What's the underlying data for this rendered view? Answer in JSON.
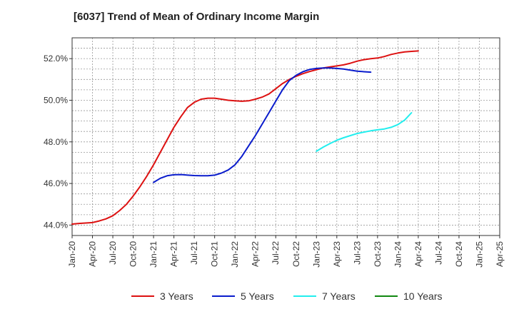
{
  "chart_data": {
    "type": "line",
    "title": "[6037]  Trend of Mean of Ordinary Income Margin",
    "xlabel": "",
    "ylabel": "",
    "ylim": [
      43.5,
      53.0
    ],
    "yticks": [
      44.0,
      46.0,
      48.0,
      50.0,
      52.0
    ],
    "ytick_labels": [
      "44.0%",
      "46.0%",
      "48.0%",
      "50.0%",
      "52.0%"
    ],
    "xticks": [
      "Jan-20",
      "Apr-20",
      "Jul-20",
      "Oct-20",
      "Jan-21",
      "Apr-21",
      "Jul-21",
      "Oct-21",
      "Jan-22",
      "Apr-22",
      "Jul-22",
      "Oct-22",
      "Jan-23",
      "Apr-23",
      "Jul-23",
      "Oct-23",
      "Jan-24",
      "Apr-24",
      "Jul-24",
      "Oct-24",
      "Jan-25",
      "Apr-25"
    ],
    "grid": true,
    "legend_position": "bottom",
    "series": [
      {
        "name": "3 Years",
        "color": "#dd1111",
        "points": [
          [
            "Jan-20",
            44.05
          ],
          [
            "Feb-20",
            44.08
          ],
          [
            "Mar-20",
            44.1
          ],
          [
            "Apr-20",
            44.12
          ],
          [
            "May-20",
            44.2
          ],
          [
            "Jun-20",
            44.3
          ],
          [
            "Jul-20",
            44.45
          ],
          [
            "Aug-20",
            44.7
          ],
          [
            "Sep-20",
            45.0
          ],
          [
            "Oct-20",
            45.4
          ],
          [
            "Nov-20",
            45.85
          ],
          [
            "Dec-20",
            46.35
          ],
          [
            "Jan-21",
            46.9
          ],
          [
            "Feb-21",
            47.5
          ],
          [
            "Mar-21",
            48.1
          ],
          [
            "Apr-21",
            48.7
          ],
          [
            "May-21",
            49.2
          ],
          [
            "Jun-21",
            49.65
          ],
          [
            "Jul-21",
            49.9
          ],
          [
            "Aug-21",
            50.05
          ],
          [
            "Sep-21",
            50.1
          ],
          [
            "Oct-21",
            50.1
          ],
          [
            "Nov-21",
            50.05
          ],
          [
            "Dec-21",
            50.0
          ],
          [
            "Jan-22",
            49.97
          ],
          [
            "Feb-22",
            49.95
          ],
          [
            "Mar-22",
            49.97
          ],
          [
            "Apr-22",
            50.05
          ],
          [
            "May-22",
            50.15
          ],
          [
            "Jun-22",
            50.3
          ],
          [
            "Jul-22",
            50.55
          ],
          [
            "Aug-22",
            50.8
          ],
          [
            "Sep-22",
            51.0
          ],
          [
            "Oct-22",
            51.15
          ],
          [
            "Nov-22",
            51.28
          ],
          [
            "Dec-22",
            51.38
          ],
          [
            "Jan-23",
            51.47
          ],
          [
            "Feb-23",
            51.55
          ],
          [
            "Mar-23",
            51.6
          ],
          [
            "Apr-23",
            51.65
          ],
          [
            "May-23",
            51.7
          ],
          [
            "Jun-23",
            51.78
          ],
          [
            "Jul-23",
            51.88
          ],
          [
            "Aug-23",
            51.95
          ],
          [
            "Sep-23",
            52.0
          ],
          [
            "Oct-23",
            52.03
          ],
          [
            "Nov-23",
            52.1
          ],
          [
            "Dec-23",
            52.2
          ],
          [
            "Jan-24",
            52.27
          ],
          [
            "Feb-24",
            52.32
          ],
          [
            "Mar-24",
            52.35
          ],
          [
            "Apr-24",
            52.37
          ]
        ]
      },
      {
        "name": "5 Years",
        "color": "#0a1ccc",
        "points": [
          [
            "Jan-21",
            46.05
          ],
          [
            "Feb-21",
            46.25
          ],
          [
            "Mar-21",
            46.37
          ],
          [
            "Apr-21",
            46.42
          ],
          [
            "May-21",
            46.43
          ],
          [
            "Jun-21",
            46.4
          ],
          [
            "Jul-21",
            46.38
          ],
          [
            "Aug-21",
            46.37
          ],
          [
            "Sep-21",
            46.37
          ],
          [
            "Oct-21",
            46.4
          ],
          [
            "Nov-21",
            46.5
          ],
          [
            "Dec-21",
            46.65
          ],
          [
            "Jan-22",
            46.9
          ],
          [
            "Feb-22",
            47.3
          ],
          [
            "Mar-22",
            47.8
          ],
          [
            "Apr-22",
            48.3
          ],
          [
            "May-22",
            48.85
          ],
          [
            "Jun-22",
            49.4
          ],
          [
            "Jul-22",
            49.95
          ],
          [
            "Aug-22",
            50.5
          ],
          [
            "Sep-22",
            50.95
          ],
          [
            "Oct-22",
            51.2
          ],
          [
            "Nov-22",
            51.37
          ],
          [
            "Dec-22",
            51.48
          ],
          [
            "Jan-23",
            51.53
          ],
          [
            "Feb-23",
            51.55
          ],
          [
            "Mar-23",
            51.55
          ],
          [
            "Apr-23",
            51.53
          ],
          [
            "May-23",
            51.5
          ],
          [
            "Jun-23",
            51.45
          ],
          [
            "Jul-23",
            51.4
          ],
          [
            "Aug-23",
            51.37
          ],
          [
            "Sep-23",
            51.35
          ]
        ]
      },
      {
        "name": "7 Years",
        "color": "#22eeee",
        "points": [
          [
            "Jan-23",
            47.55
          ],
          [
            "Feb-23",
            47.75
          ],
          [
            "Mar-23",
            47.92
          ],
          [
            "Apr-23",
            48.08
          ],
          [
            "May-23",
            48.2
          ],
          [
            "Jun-23",
            48.3
          ],
          [
            "Jul-23",
            48.4
          ],
          [
            "Aug-23",
            48.47
          ],
          [
            "Sep-23",
            48.53
          ],
          [
            "Oct-23",
            48.58
          ],
          [
            "Nov-23",
            48.62
          ],
          [
            "Dec-23",
            48.7
          ],
          [
            "Jan-24",
            48.83
          ],
          [
            "Feb-24",
            49.05
          ],
          [
            "Mar-24",
            49.4
          ]
        ]
      },
      {
        "name": "10 Years",
        "color": "#118811",
        "points": []
      }
    ]
  }
}
